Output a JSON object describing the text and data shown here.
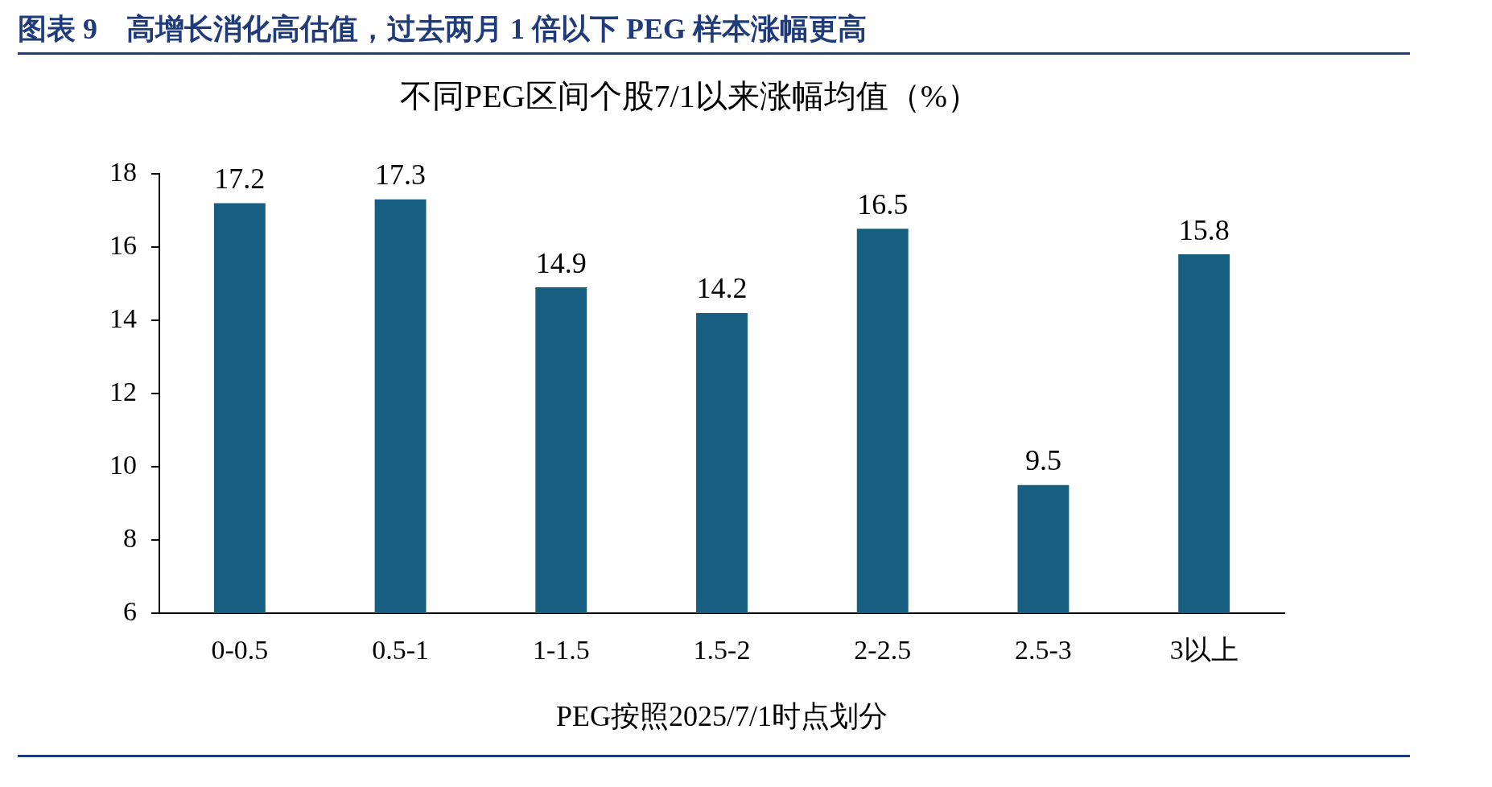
{
  "chart_data": {
    "type": "bar",
    "title": "图表 9　高增长消化高估值，过去两月 1 倍以下 PEG 样本涨幅更高",
    "subtitle": "不同PEG区间个股7/1以来涨幅均值（%）",
    "xlabel": "PEG按照2025/7/1时点划分",
    "categories": [
      "0-0.5",
      "0.5-1",
      "1-1.5",
      "1.5-2",
      "2-2.5",
      "2.5-3",
      "3以上"
    ],
    "values": [
      17.2,
      17.3,
      14.9,
      14.2,
      16.5,
      9.5,
      15.8
    ],
    "color": "#175f81",
    "ylim": [
      6,
      18
    ],
    "yticks": [
      6,
      8,
      10,
      12,
      14,
      16,
      18
    ],
    "grid": false,
    "legend": false,
    "data_labels": true
  }
}
